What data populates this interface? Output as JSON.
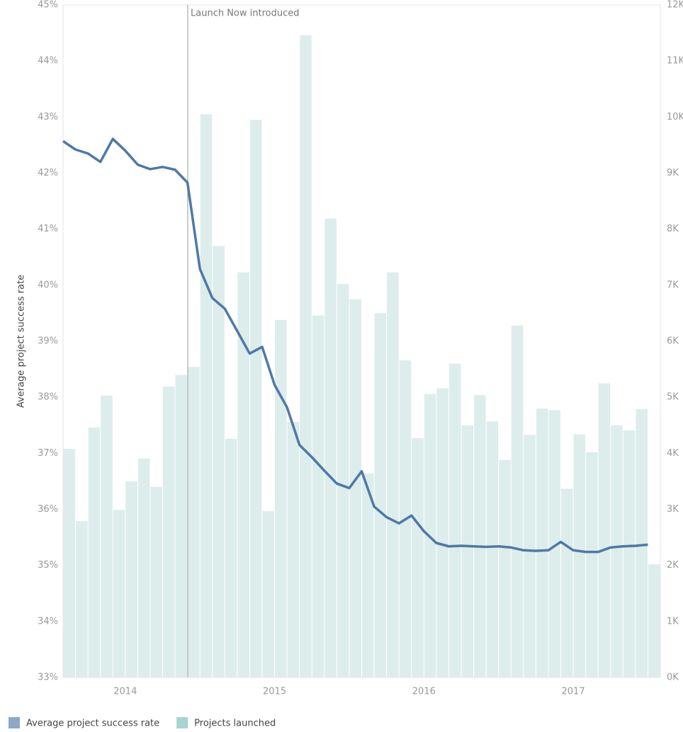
{
  "chart_data": {
    "type": "combo",
    "annotation": "Launch Now introduced",
    "ylabel": "Average project success rate",
    "categories": [
      null,
      null,
      null,
      null,
      null,
      "2014",
      null,
      null,
      null,
      null,
      null,
      null,
      null,
      null,
      null,
      null,
      null,
      "2015",
      null,
      null,
      null,
      null,
      null,
      null,
      null,
      null,
      null,
      null,
      null,
      "2016",
      null,
      null,
      null,
      null,
      null,
      null,
      null,
      null,
      null,
      null,
      null,
      "2017",
      null,
      null,
      null,
      null,
      null,
      null
    ],
    "series": [
      {
        "name": "Average project success rate",
        "type": "line",
        "color": "#4e79a7",
        "axis": "y",
        "values": [
          42.57,
          42.42,
          42.35,
          42.2,
          42.61,
          42.4,
          42.15,
          42.07,
          42.11,
          42.06,
          41.83,
          40.29,
          39.77,
          39.58,
          39.18,
          38.78,
          38.9,
          38.22,
          37.82,
          37.15,
          36.93,
          36.69,
          36.46,
          36.38,
          36.68,
          36.05,
          35.86,
          35.75,
          35.89,
          35.61,
          35.4,
          35.34,
          35.35,
          35.34,
          35.33,
          35.34,
          35.32,
          35.27,
          35.26,
          35.27,
          35.42,
          35.27,
          35.24,
          35.24,
          35.32,
          35.34,
          35.35,
          35.37
        ]
      },
      {
        "name": "Projects launched",
        "type": "bar",
        "color": "#a9d3cf",
        "axis": "y2",
        "values": [
          4080,
          2790,
          4460,
          5030,
          2990,
          3500,
          3910,
          3400,
          5190,
          5400,
          5540,
          10050,
          7700,
          4260,
          7230,
          9950,
          2970,
          6380,
          4560,
          11460,
          6460,
          8190,
          7020,
          6750,
          3640,
          6500,
          7230,
          5660,
          4270,
          5060,
          5160,
          5600,
          4500,
          5040,
          4570,
          3880,
          6280,
          4330,
          4800,
          4770,
          3370,
          4340,
          4020,
          5250,
          4500,
          4410,
          4790,
          2020
        ]
      }
    ],
    "ylim": [
      33,
      45
    ],
    "yticks": [
      {
        "value": 33,
        "label": "33%"
      },
      {
        "value": 34,
        "label": "34%"
      },
      {
        "value": 35,
        "label": "35%"
      },
      {
        "value": 36,
        "label": "36%"
      },
      {
        "value": 37,
        "label": "37%"
      },
      {
        "value": 38,
        "label": "38%"
      },
      {
        "value": 39,
        "label": "39%"
      },
      {
        "value": 40,
        "label": "40%"
      },
      {
        "value": 41,
        "label": "41%"
      },
      {
        "value": 42,
        "label": "42%"
      },
      {
        "value": 43,
        "label": "43%"
      },
      {
        "value": 44,
        "label": "44%"
      },
      {
        "value": 45,
        "label": "45%"
      }
    ],
    "y2lim": [
      0,
      12000
    ],
    "y2ticks": [
      {
        "value": 0,
        "label": "0K"
      },
      {
        "value": 1000,
        "label": "1K"
      },
      {
        "value": 2000,
        "label": "2K"
      },
      {
        "value": 3000,
        "label": "3K"
      },
      {
        "value": 4000,
        "label": "4K"
      },
      {
        "value": 5000,
        "label": "5K"
      },
      {
        "value": 6000,
        "label": "6K"
      },
      {
        "value": 7000,
        "label": "7K"
      },
      {
        "value": 8000,
        "label": "8K"
      },
      {
        "value": 9000,
        "label": "9K"
      },
      {
        "value": 10000,
        "label": "10K"
      },
      {
        "value": 11000,
        "label": "11K"
      },
      {
        "value": 12000,
        "label": "12K"
      }
    ]
  }
}
